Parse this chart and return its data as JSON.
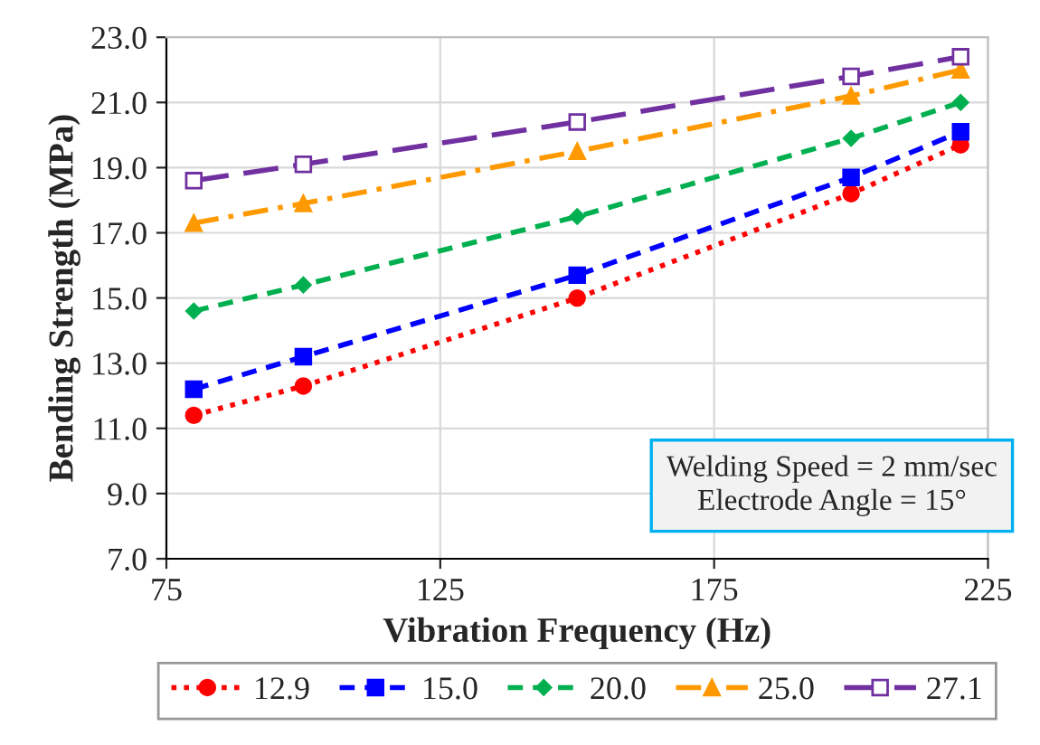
{
  "chart_data": {
    "type": "line",
    "xlabel": "Vibration Frequency (Hz)",
    "ylabel": "Bending Strength (MPa)",
    "x": [
      80,
      100,
      150,
      200,
      220
    ],
    "series": [
      {
        "name": "12.9",
        "color": "#ff0000",
        "marker": "circle",
        "line_style": "dotted",
        "values": [
          11.4,
          12.3,
          15.0,
          18.2,
          19.7
        ]
      },
      {
        "name": "15.0",
        "color": "#0000ff",
        "marker": "square",
        "line_style": "dashed",
        "values": [
          12.2,
          13.2,
          15.7,
          18.7,
          20.1
        ]
      },
      {
        "name": "20.0",
        "color": "#00b050",
        "marker": "diamond",
        "line_style": "dashed",
        "values": [
          14.6,
          15.4,
          17.5,
          19.9,
          21.0
        ]
      },
      {
        "name": "25.0",
        "color": "#ff9900",
        "marker": "triangle",
        "line_style": "dashdot",
        "values": [
          17.3,
          17.9,
          19.5,
          21.2,
          22.0
        ]
      },
      {
        "name": "27.1",
        "color": "#7030a0",
        "marker": "square_open",
        "line_style": "longdash",
        "values": [
          18.6,
          19.1,
          20.4,
          21.8,
          22.4
        ]
      }
    ],
    "xlim": [
      75,
      225
    ],
    "xticks": [
      75,
      125,
      175,
      225
    ],
    "ylim": [
      7.0,
      23.0
    ],
    "yticks": [
      {
        "value": 7,
        "label": "7.0"
      },
      {
        "value": 9,
        "label": "9.0"
      },
      {
        "value": 11,
        "label": "11.0"
      },
      {
        "value": 13,
        "label": "13.0"
      },
      {
        "value": 15,
        "label": "15.0"
      },
      {
        "value": 17,
        "label": "17.0"
      },
      {
        "value": 19,
        "label": "19.0"
      },
      {
        "value": 21,
        "label": "21.0"
      },
      {
        "value": 23,
        "label": "23.0"
      }
    ],
    "grid": true,
    "legend": "bottom",
    "annotations": [
      "Welding Speed = 2 mm/sec\nElectrode Angle = 15°"
    ]
  }
}
